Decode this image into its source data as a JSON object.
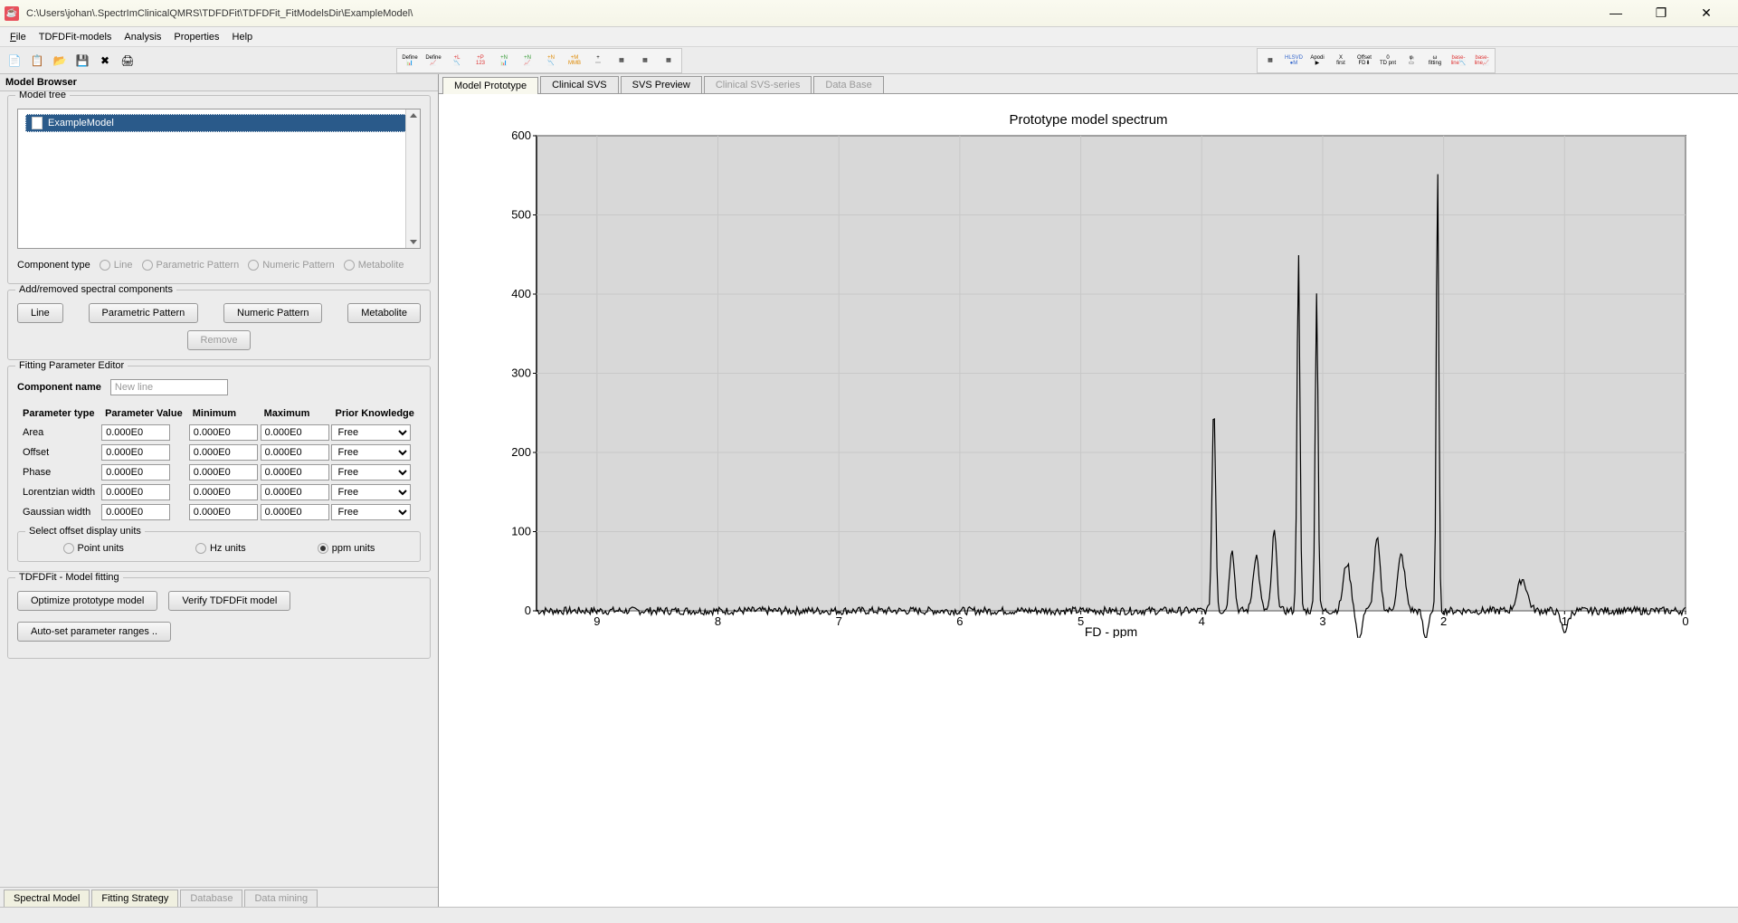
{
  "window": {
    "title": "C:\\Users\\johan\\.SpectrImClinicalQMRS\\TDFDFit\\TDFDFit_FitModelsDir\\ExampleModel\\"
  },
  "menu": {
    "file": "File",
    "models": "TDFDFit-models",
    "analysis": "Analysis",
    "properties": "Properties",
    "help": "Help"
  },
  "panel": {
    "browser_title": "Model Browser",
    "tree_title": "Model tree",
    "tree_item": "ExampleModel",
    "comp_type_label": "Component type",
    "ct_line": "Line",
    "ct_parp": "Parametric Pattern",
    "ct_nump": "Numeric Pattern",
    "ct_metab": "Metabolite",
    "add_title": "Add/removed spectral components",
    "btn_line": "Line",
    "btn_parp": "Parametric Pattern",
    "btn_nump": "Numeric Pattern",
    "btn_metab": "Metabolite",
    "btn_remove": "Remove",
    "fpe_title": "Fitting Parameter Editor",
    "comp_name_label": "Component name",
    "comp_name_value": "New line",
    "col_ptype": "Parameter type",
    "col_pval": "Parameter Value",
    "col_min": "Minimum",
    "col_max": "Maximum",
    "col_prior": "Prior Knowledge",
    "rows": [
      {
        "name": "Area",
        "v": "0.000E0",
        "min": "0.000E0",
        "max": "0.000E0",
        "pk": "Free"
      },
      {
        "name": "Offset",
        "v": "0.000E0",
        "min": "0.000E0",
        "max": "0.000E0",
        "pk": "Free"
      },
      {
        "name": "Phase",
        "v": "0.000E0",
        "min": "0.000E0",
        "max": "0.000E0",
        "pk": "Free"
      },
      {
        "name": "Lorentzian width",
        "v": "0.000E0",
        "min": "0.000E0",
        "max": "0.000E0",
        "pk": "Free"
      },
      {
        "name": "Gaussian width",
        "v": "0.000E0",
        "min": "0.000E0",
        "max": "0.000E0",
        "pk": "Free"
      }
    ],
    "offset_title": "Select offset display units",
    "opt_point": "Point units",
    "opt_hz": "Hz units",
    "opt_ppm": "ppm units",
    "fit_title": "TDFDFit - Model fitting",
    "btn_opt": "Optimize prototype model",
    "btn_verify": "Verify TDFDFit model",
    "btn_auto": "Auto-set parameter ranges .."
  },
  "btabs": {
    "spectral": "Spectral Model",
    "fitting": "Fitting Strategy",
    "database": "Database",
    "mining": "Data mining"
  },
  "ttabs": {
    "proto": "Model Prototype",
    "clinical": "Clinical SVS",
    "preview": "SVS Preview",
    "series": "Clinical SVS-series",
    "db": "Data Base"
  },
  "chart": {
    "title": "Prototype model spectrum",
    "xlabel": "FD - ppm",
    "ylim": [
      0,
      600
    ],
    "ytick_step": 100,
    "xlim": [
      9.5,
      0
    ],
    "xticks": [
      9,
      8,
      7,
      6,
      5,
      4,
      3,
      2,
      1,
      0
    ],
    "plot_bg": "#d8d8d8",
    "grid_color": "#c8c8c8",
    "axis_color": "#000000",
    "line_color": "#000000",
    "title_fontsize": 15,
    "tick_fontsize": 13
  }
}
